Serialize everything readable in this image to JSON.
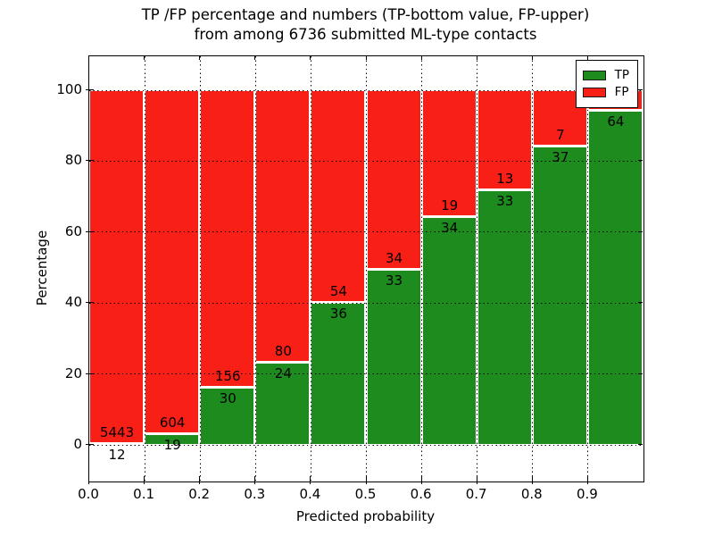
{
  "figure": {
    "title_line1": "TP /FP percentage and numbers (TP-bottom value, FP-upper)",
    "title_line2": "from among 6736 submitted ML-type contacts"
  },
  "chart_data": {
    "type": "bar",
    "stacked": true,
    "normalized_to_percent": true,
    "title": "TP /FP percentage and numbers (TP-bottom value, FP-upper) from among 6736 submitted ML-type contacts",
    "total_submitted_contacts": 6736,
    "xlabel": "Predicted probability",
    "ylabel": "Percentage",
    "x_tick_labels": [
      "0.0",
      "0.1",
      "0.2",
      "0.3",
      "0.4",
      "0.5",
      "0.6",
      "0.7",
      "0.8",
      "0.9"
    ],
    "y_ticks": [
      0,
      20,
      40,
      60,
      80,
      100
    ],
    "bin_starts": [
      0.0,
      0.1,
      0.2,
      0.3,
      0.4,
      0.5,
      0.6,
      0.7,
      0.8,
      0.9
    ],
    "bin_width": 0.1,
    "series": [
      {
        "name": "TP",
        "color": "#1e8b1e",
        "counts": [
          12,
          19,
          30,
          24,
          36,
          33,
          34,
          33,
          37,
          64
        ]
      },
      {
        "name": "FP",
        "color": "#f81f17",
        "counts": [
          5443,
          604,
          156,
          80,
          54,
          34,
          19,
          13,
          7,
          4
        ]
      }
    ],
    "tp_percent_of_bin": [
      0.22,
      3.05,
      16.13,
      23.08,
      40.0,
      49.25,
      64.15,
      71.74,
      84.09,
      94.12
    ],
    "legend": {
      "position": "upper right",
      "entries": [
        "TP",
        "FP"
      ]
    },
    "grid": "dotted",
    "last_fp_label_obscured_by_legend": true
  }
}
